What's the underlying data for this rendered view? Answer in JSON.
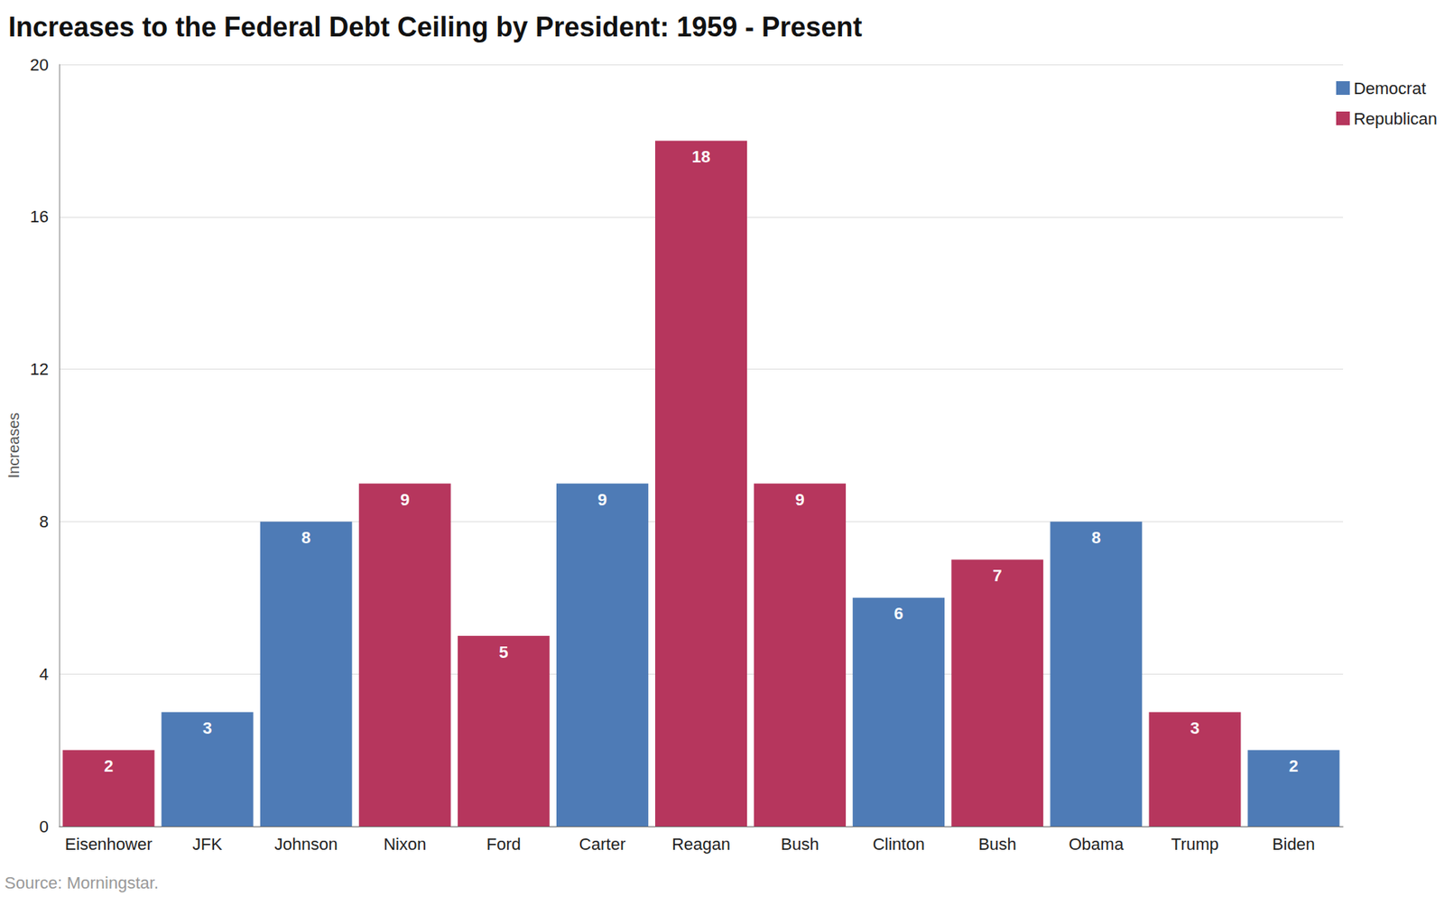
{
  "chart_data": {
    "type": "bar",
    "title": "Increases to the Federal Debt Ceiling by President: 1959 - Present",
    "ylabel": "Increases",
    "source": "Source: Morningstar.",
    "categories": [
      "Eisenhower",
      "JFK",
      "Johnson",
      "Nixon",
      "Ford",
      "Carter",
      "Reagan",
      "Bush",
      "Clinton",
      "Bush",
      "Obama",
      "Trump",
      "Biden"
    ],
    "series": [
      {
        "name": "Democrat",
        "color": "#4a78b5",
        "values": [
          null,
          3,
          8,
          null,
          null,
          9,
          null,
          null,
          6,
          null,
          8,
          null,
          2
        ]
      },
      {
        "name": "Republican",
        "color": "#b5325a",
        "values": [
          2,
          null,
          null,
          9,
          5,
          null,
          18,
          9,
          null,
          7,
          null,
          3,
          null
        ]
      }
    ],
    "ylim": [
      0,
      20
    ],
    "yticks": [
      0,
      4,
      8,
      12,
      16,
      20
    ],
    "grid": true,
    "legend": "top-right",
    "data_labels": true
  }
}
